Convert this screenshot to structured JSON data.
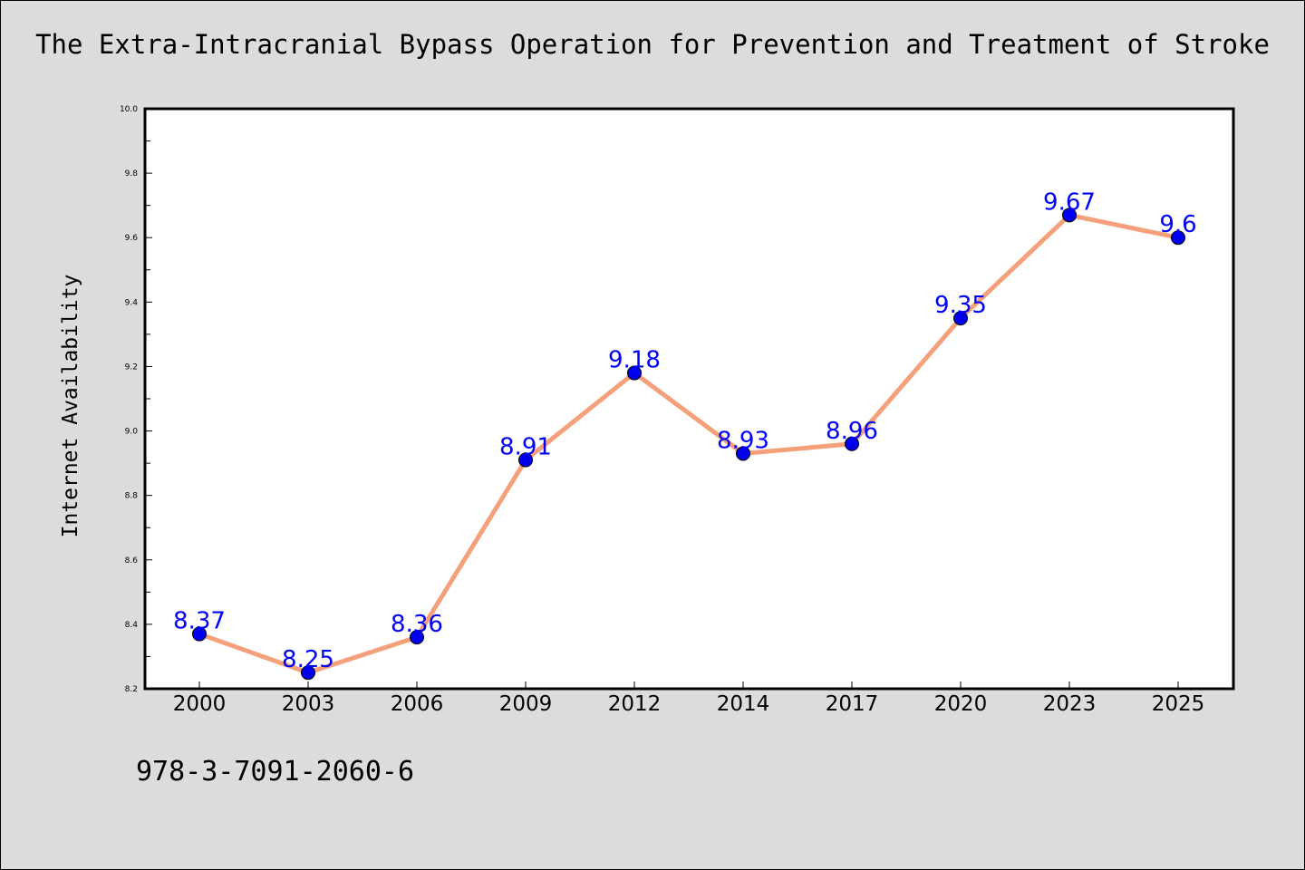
{
  "chart_data": {
    "type": "line",
    "title": "The Extra-Intracranial Bypass Operation for Prevention and Treatment of Stroke",
    "xlabel": "",
    "ylabel": "Internet Availability",
    "categories": [
      "2000",
      "2003",
      "2006",
      "2009",
      "2012",
      "2014",
      "2017",
      "2020",
      "2023",
      "2025"
    ],
    "series": [
      {
        "values": [
          8.37,
          8.25,
          8.36,
          8.91,
          9.18,
          8.93,
          8.96,
          9.35,
          9.67,
          9.6
        ],
        "labels": [
          "8.37",
          "8.25",
          "8.36",
          "8.91",
          "9.18",
          "8.93",
          "8.96",
          "9.35",
          "9.67",
          "9.6"
        ],
        "line_color": "#f4a07a",
        "marker_color": "#0000ee",
        "label_color": "#0000ff"
      }
    ],
    "ylim": [
      8.2,
      10.0
    ],
    "yticks": [
      "8.2",
      "8.4",
      "8.6",
      "8.8",
      "9.0",
      "9.2",
      "9.4",
      "9.6",
      "9.8",
      "10.0"
    ],
    "grid": false,
    "legend": "none"
  },
  "footer": {
    "code": "978-3-7091-2060-6"
  },
  "colors": {
    "background": "#dcdcdc",
    "plot_area": "#ffffff"
  }
}
